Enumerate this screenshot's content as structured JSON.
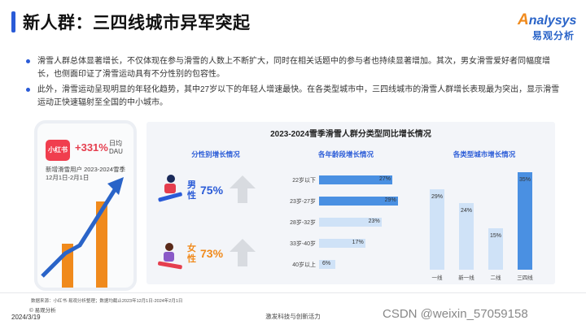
{
  "header": {
    "title": "新人群：三四线城市异军突起"
  },
  "logo": {
    "brand": "nalysys",
    "brand_initial": "A",
    "sub": "易观分析"
  },
  "bullets": [
    "滑雪人群总体显著增长，不仅体现在参与滑雪的人数上不断扩大，同时在相关话题中的参与者也持续显著增加。其次，男女滑雪爱好者同幅度增长，也侧面印证了滑雪运动具有不分性别的包容性。",
    "此外，滑雪运动呈现明显的年轻化趋势，其中27岁以下的年轻人增速最快。在各类型城市中，三四线城市的滑雪人群增长表现最为突出，显示滑雪运动正快速辐射至全国的中小城市。"
  ],
  "phone_card": {
    "app_name": "小红书",
    "growth": "+331%",
    "dau_label": "日均DAU",
    "caption": "新增滑雪用户 2023-2024雪季 12月1日-2月1日"
  },
  "colors": {
    "accent_blue": "#2a5bd7",
    "bar_blue": "#4a90e2",
    "bar_light": "#cfe2f7",
    "male_blue": "#2a5bd7",
    "female_orange": "#f08a1c",
    "red": "#e53e4e"
  },
  "chart_data": [
    {
      "type": "bar",
      "title": "分性别增长情况",
      "categories": [
        "男性",
        "女性"
      ],
      "values": [
        75,
        73
      ],
      "labels": [
        "75%",
        "73%"
      ]
    },
    {
      "type": "bar",
      "orientation": "horizontal",
      "title": "各年龄段增长情况",
      "categories": [
        "22岁以下",
        "23岁-27岁",
        "28岁-32岁",
        "33岁-40岁",
        "40岁以上"
      ],
      "values": [
        27,
        29,
        23,
        17,
        6
      ],
      "labels": [
        "27%",
        "29%",
        "23%",
        "17%",
        "6%"
      ],
      "highlight": [
        true,
        true,
        false,
        false,
        false
      ]
    },
    {
      "type": "bar",
      "title": "各类型城市增长情况",
      "categories": [
        "一线",
        "新一线",
        "二线",
        "三四线"
      ],
      "values": [
        29,
        24,
        15,
        35
      ],
      "labels": [
        "29%",
        "24%",
        "15%",
        "35%"
      ],
      "highlight": [
        false,
        false,
        false,
        true
      ]
    }
  ],
  "chart_panel_title": "2023-2024雪季滑雪人群分类型同比增长情况",
  "footer": {
    "source": "数据来源：小红书·易观分析整理；数据均截止2023年12月1日-2024年2月1日",
    "copyright": "© 易观分析",
    "date": "2024/3/19",
    "slogan": "激发科技与创新活力",
    "watermark": "CSDN @weixin_57059158"
  }
}
